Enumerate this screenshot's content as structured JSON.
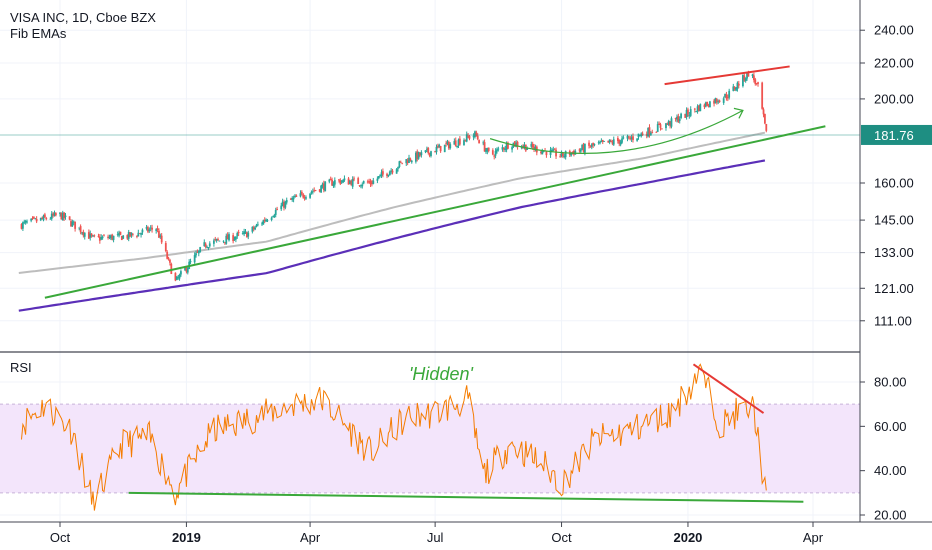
{
  "header": {
    "symbol_line": "VISA INC, 1D, Cboe BZX",
    "indicator": "Fib EMAs"
  },
  "rsi_panel": {
    "label": "RSI",
    "annotation": "'Hidden'"
  },
  "colors": {
    "up": "#26a69a",
    "down": "#ef5350",
    "ema_fast": "#bdbdbd",
    "ema_slow": "#5b2fb8",
    "trend_green": "#3aa83a",
    "trend_red": "#e53935",
    "rsi_line": "#f57c00",
    "rsi_band": "#f3e5fb",
    "price_tag": "#1e8e82"
  },
  "chart_data": [
    {
      "type": "candlestick",
      "title": "VISA INC, 1D, Cboe BZX",
      "x_tick_labels": [
        "Oct",
        "2019",
        "Apr",
        "Jul",
        "Oct",
        "2020",
        "Apr"
      ],
      "y_tick_labels": [
        "240.00",
        "220.00",
        "200.00",
        "181.76",
        "160.00",
        "145.00",
        "133.00",
        "121.00",
        "111.00"
      ],
      "y_ticks": [
        240,
        220,
        200,
        160,
        145,
        133,
        121,
        111
      ],
      "ylim": [
        104,
        255
      ],
      "y_scale": "log",
      "last_price": 181.76,
      "price_path": [
        [
          "2018-09-01",
          143
        ],
        [
          "2018-10-01",
          147
        ],
        [
          "2018-10-25",
          138
        ],
        [
          "2018-11-20",
          139
        ],
        [
          "2018-12-10",
          142
        ],
        [
          "2018-12-24",
          123
        ],
        [
          "2019-01-15",
          136
        ],
        [
          "2019-02-15",
          140
        ],
        [
          "2019-03-15",
          152
        ],
        [
          "2019-04-20",
          161
        ],
        [
          "2019-05-15",
          160
        ],
        [
          "2019-06-10",
          170
        ],
        [
          "2019-07-15",
          178
        ],
        [
          "2019-07-30",
          182
        ],
        [
          "2019-08-10",
          172
        ],
        [
          "2019-08-25",
          178
        ],
        [
          "2019-09-20",
          174
        ],
        [
          "2019-10-01",
          172
        ],
        [
          "2019-10-20",
          176
        ],
        [
          "2019-11-20",
          180
        ],
        [
          "2019-12-20",
          188
        ],
        [
          "2020-01-10",
          196
        ],
        [
          "2020-01-30",
          202
        ],
        [
          "2020-02-15",
          215
        ],
        [
          "2020-02-21",
          206
        ],
        [
          "2020-02-27",
          182
        ]
      ],
      "series": [
        {
          "name": "EMA fast",
          "points": [
            [
              "2018-09-01",
              126
            ],
            [
              "2018-12-01",
              131
            ],
            [
              "2019-03-01",
              137
            ],
            [
              "2019-06-01",
              150
            ],
            [
              "2019-09-01",
              162
            ],
            [
              "2019-12-01",
              171
            ],
            [
              "2020-02-27",
              183
            ]
          ]
        },
        {
          "name": "EMA slow",
          "points": [
            [
              "2018-09-01",
              114
            ],
            [
              "2018-12-01",
              120
            ],
            [
              "2019-03-01",
              126
            ],
            [
              "2019-06-01",
              138
            ],
            [
              "2019-09-01",
              150
            ],
            [
              "2019-12-01",
              160
            ],
            [
              "2020-02-27",
              170
            ]
          ]
        }
      ],
      "annotations": [
        {
          "type": "trendline",
          "color": "green",
          "from": [
            "2018-09-20",
            118
          ],
          "to": [
            "2020-04-10",
            186
          ]
        },
        {
          "type": "trendline",
          "color": "red",
          "from": [
            "2019-12-15",
            208
          ],
          "to": [
            "2020-03-15",
            218
          ]
        },
        {
          "type": "arc",
          "color": "green",
          "from": [
            "2019-08-10",
            180
          ],
          "to": [
            "2020-02-10",
            194
          ]
        }
      ]
    },
    {
      "type": "line",
      "title": "RSI",
      "x_tick_labels": [
        "Oct",
        "2019",
        "Apr",
        "Jul",
        "Oct",
        "2020",
        "Apr"
      ],
      "y_tick_labels": [
        "80.00",
        "60.00",
        "40.00",
        "20.00"
      ],
      "y_ticks": [
        80,
        60,
        40,
        20
      ],
      "ylim": [
        16,
        92
      ],
      "band": [
        30,
        70
      ],
      "rsi_path": [
        [
          "2018-09-01",
          60
        ],
        [
          "2018-09-20",
          70
        ],
        [
          "2018-10-10",
          58
        ],
        [
          "2018-10-25",
          25
        ],
        [
          "2018-11-15",
          52
        ],
        [
          "2018-12-05",
          55
        ],
        [
          "2018-12-24",
          30
        ],
        [
          "2019-01-20",
          58
        ],
        [
          "2019-02-20",
          64
        ],
        [
          "2019-03-20",
          70
        ],
        [
          "2019-04-10",
          72
        ],
        [
          "2019-05-15",
          48
        ],
        [
          "2019-06-10",
          64
        ],
        [
          "2019-07-01",
          66
        ],
        [
          "2019-07-25",
          72
        ],
        [
          "2019-08-05",
          38
        ],
        [
          "2019-08-25",
          52
        ],
        [
          "2019-09-20",
          42
        ],
        [
          "2019-10-01",
          34
        ],
        [
          "2019-10-25",
          54
        ],
        [
          "2019-11-20",
          58
        ],
        [
          "2019-12-20",
          66
        ],
        [
          "2020-01-05",
          80
        ],
        [
          "2020-01-10",
          86
        ],
        [
          "2020-01-25",
          60
        ],
        [
          "2020-02-05",
          66
        ],
        [
          "2020-02-18",
          68
        ],
        [
          "2020-02-27",
          27
        ]
      ],
      "annotations": [
        {
          "type": "trendline",
          "color": "green",
          "from": [
            "2018-11-20",
            30
          ],
          "to": [
            "2020-03-25",
            26
          ]
        },
        {
          "type": "trendline",
          "color": "red",
          "from": [
            "2020-01-05",
            88
          ],
          "to": [
            "2020-02-25",
            66
          ]
        }
      ]
    }
  ]
}
